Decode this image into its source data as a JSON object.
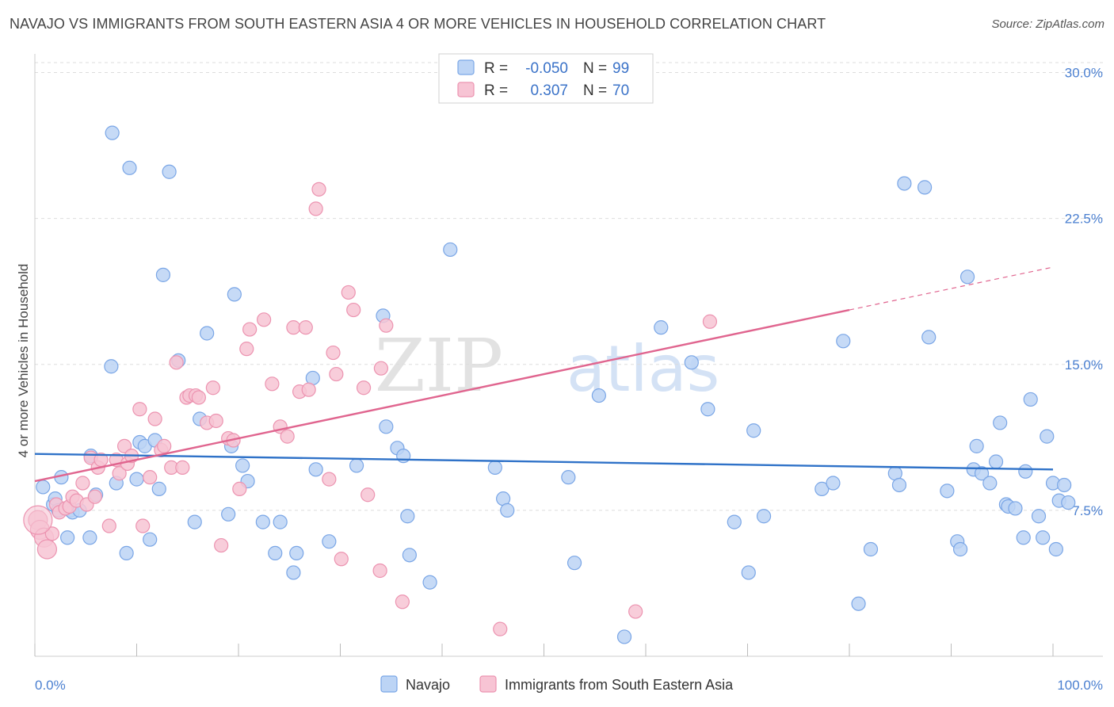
{
  "title": "NAVAJO VS IMMIGRANTS FROM SOUTH EASTERN ASIA 4 OR MORE VEHICLES IN HOUSEHOLD CORRELATION CHART",
  "source": "Source: ZipAtlas.com",
  "watermark": {
    "zip": "ZIP",
    "atlas": "atlas"
  },
  "colors": {
    "navajo_fill": "#bcd4f5",
    "navajo_stroke": "#7aa6e6",
    "navajo_line": "#2f72c8",
    "sea_fill": "#f7c4d4",
    "sea_stroke": "#ec93b0",
    "sea_line": "#e0658f",
    "grid": "#dddddd",
    "axis_text": "#4a7fd0"
  },
  "stats": [
    {
      "r_label": "R =",
      "r_value": "-0.050",
      "n_label": "N =",
      "n_value": "99"
    },
    {
      "r_label": "R =",
      "r_value": "0.307",
      "n_label": "N =",
      "n_value": "70"
    }
  ],
  "chart_data": {
    "type": "scatter",
    "xlabel": "",
    "ylabel": "4 or more Vehicles in Household",
    "xlim": [
      0,
      100
    ],
    "ylim": [
      0,
      31
    ],
    "x_tick_labels": [
      "0.0%",
      "100.0%"
    ],
    "y_ticks": [
      7.5,
      15.0,
      22.5,
      30.0
    ],
    "y_tick_labels": [
      "7.5%",
      "15.0%",
      "22.5%",
      "30.0%"
    ],
    "grid": "horizontal dashed",
    "legend_position": "bottom",
    "series": [
      {
        "name": "Navajo",
        "trend": {
          "x": [
            0,
            100
          ],
          "y": [
            10.4,
            9.6
          ]
        },
        "points": [
          [
            0.8,
            8.7
          ],
          [
            1.8,
            7.8
          ],
          [
            2.0,
            8.1
          ],
          [
            2.3,
            7.5
          ],
          [
            2.6,
            9.2
          ],
          [
            3.2,
            6.1
          ],
          [
            3.5,
            7.5
          ],
          [
            3.7,
            7.4
          ],
          [
            4.4,
            7.5
          ],
          [
            5.4,
            6.1
          ],
          [
            5.5,
            10.3
          ],
          [
            6.0,
            8.3
          ],
          [
            7.5,
            14.9
          ],
          [
            7.6,
            26.9
          ],
          [
            8.0,
            8.9
          ],
          [
            9.0,
            5.3
          ],
          [
            9.3,
            25.1
          ],
          [
            10.0,
            9.1
          ],
          [
            10.3,
            11.0
          ],
          [
            10.8,
            10.8
          ],
          [
            11.3,
            6.0
          ],
          [
            11.8,
            11.1
          ],
          [
            12.2,
            8.6
          ],
          [
            12.6,
            19.6
          ],
          [
            13.2,
            24.9
          ],
          [
            14.1,
            15.2
          ],
          [
            15.7,
            6.9
          ],
          [
            16.2,
            12.2
          ],
          [
            16.9,
            16.6
          ],
          [
            19.0,
            7.3
          ],
          [
            19.3,
            10.8
          ],
          [
            19.6,
            18.6
          ],
          [
            20.4,
            9.8
          ],
          [
            20.9,
            9.0
          ],
          [
            22.4,
            6.9
          ],
          [
            23.6,
            5.3
          ],
          [
            24.1,
            6.9
          ],
          [
            25.4,
            4.3
          ],
          [
            25.7,
            5.3
          ],
          [
            27.3,
            14.3
          ],
          [
            27.6,
            9.6
          ],
          [
            28.9,
            5.9
          ],
          [
            31.6,
            9.8
          ],
          [
            34.2,
            17.5
          ],
          [
            34.5,
            11.8
          ],
          [
            35.6,
            10.7
          ],
          [
            36.2,
            10.3
          ],
          [
            36.6,
            7.2
          ],
          [
            36.8,
            5.2
          ],
          [
            38.8,
            3.8
          ],
          [
            40.8,
            20.9
          ],
          [
            45.2,
            9.7
          ],
          [
            46.0,
            8.1
          ],
          [
            46.4,
            7.5
          ],
          [
            52.4,
            9.2
          ],
          [
            53.0,
            4.8
          ],
          [
            55.4,
            13.4
          ],
          [
            57.9,
            1.0
          ],
          [
            61.5,
            16.9
          ],
          [
            64.5,
            15.1
          ],
          [
            66.1,
            12.7
          ],
          [
            68.7,
            6.9
          ],
          [
            70.1,
            4.3
          ],
          [
            70.6,
            11.6
          ],
          [
            71.6,
            7.2
          ],
          [
            77.3,
            8.6
          ],
          [
            78.4,
            8.9
          ],
          [
            79.4,
            16.2
          ],
          [
            80.9,
            2.7
          ],
          [
            82.1,
            5.5
          ],
          [
            84.5,
            9.4
          ],
          [
            84.9,
            8.8
          ],
          [
            85.4,
            24.3
          ],
          [
            87.4,
            24.1
          ],
          [
            87.8,
            16.4
          ],
          [
            89.6,
            8.5
          ],
          [
            90.6,
            5.9
          ],
          [
            90.9,
            5.5
          ],
          [
            91.6,
            19.5
          ],
          [
            92.2,
            9.6
          ],
          [
            92.5,
            10.8
          ],
          [
            93.0,
            9.4
          ],
          [
            93.8,
            8.9
          ],
          [
            94.4,
            10.0
          ],
          [
            94.8,
            12.0
          ],
          [
            95.4,
            7.8
          ],
          [
            95.6,
            7.7
          ],
          [
            96.3,
            7.6
          ],
          [
            97.1,
            6.1
          ],
          [
            97.3,
            9.5
          ],
          [
            97.8,
            13.2
          ],
          [
            98.6,
            7.2
          ],
          [
            99.0,
            6.1
          ],
          [
            99.4,
            11.3
          ],
          [
            100.0,
            8.9
          ],
          [
            100.3,
            5.5
          ],
          [
            100.6,
            8.0
          ],
          [
            101.1,
            8.8
          ],
          [
            101.5,
            7.9
          ]
        ]
      },
      {
        "name": "Immigrants from South Eastern Asia",
        "trend": {
          "x": [
            0,
            80
          ],
          "y": [
            9.0,
            17.8
          ]
        },
        "trend_dashed": {
          "x": [
            80,
            100
          ],
          "y": [
            17.8,
            20.0
          ]
        },
        "points": [
          [
            0.3,
            7.0
          ],
          [
            0.5,
            6.5
          ],
          [
            0.9,
            6.1
          ],
          [
            1.2,
            5.5
          ],
          [
            1.7,
            6.3
          ],
          [
            2.1,
            7.8
          ],
          [
            2.4,
            7.4
          ],
          [
            3.0,
            7.6
          ],
          [
            3.4,
            7.7
          ],
          [
            3.7,
            8.2
          ],
          [
            4.1,
            8.0
          ],
          [
            4.7,
            8.9
          ],
          [
            5.1,
            7.8
          ],
          [
            5.5,
            10.2
          ],
          [
            5.9,
            8.2
          ],
          [
            6.2,
            9.7
          ],
          [
            6.5,
            10.1
          ],
          [
            7.3,
            6.7
          ],
          [
            8.0,
            10.1
          ],
          [
            8.3,
            9.4
          ],
          [
            8.8,
            10.8
          ],
          [
            9.1,
            9.9
          ],
          [
            9.5,
            10.3
          ],
          [
            10.3,
            12.7
          ],
          [
            10.6,
            6.7
          ],
          [
            11.3,
            9.2
          ],
          [
            11.8,
            12.2
          ],
          [
            12.4,
            10.6
          ],
          [
            12.7,
            10.8
          ],
          [
            13.4,
            9.7
          ],
          [
            13.9,
            15.1
          ],
          [
            14.5,
            9.7
          ],
          [
            14.9,
            13.3
          ],
          [
            15.2,
            13.4
          ],
          [
            15.8,
            13.4
          ],
          [
            16.1,
            13.3
          ],
          [
            16.9,
            12.0
          ],
          [
            17.5,
            13.8
          ],
          [
            17.8,
            12.1
          ],
          [
            18.3,
            5.7
          ],
          [
            19.0,
            11.2
          ],
          [
            19.5,
            11.1
          ],
          [
            20.1,
            8.6
          ],
          [
            20.8,
            15.8
          ],
          [
            21.1,
            16.8
          ],
          [
            22.5,
            17.3
          ],
          [
            23.3,
            14.0
          ],
          [
            24.1,
            11.8
          ],
          [
            24.8,
            11.3
          ],
          [
            25.4,
            16.9
          ],
          [
            26.0,
            13.6
          ],
          [
            26.6,
            16.9
          ],
          [
            26.9,
            13.7
          ],
          [
            27.6,
            23.0
          ],
          [
            27.9,
            24.0
          ],
          [
            28.9,
            9.1
          ],
          [
            29.3,
            15.6
          ],
          [
            29.6,
            14.5
          ],
          [
            30.1,
            5.0
          ],
          [
            30.8,
            18.7
          ],
          [
            31.3,
            17.8
          ],
          [
            32.3,
            13.8
          ],
          [
            32.7,
            8.3
          ],
          [
            33.9,
            4.4
          ],
          [
            34.0,
            14.8
          ],
          [
            34.5,
            17.0
          ],
          [
            36.1,
            2.8
          ],
          [
            45.7,
            1.4
          ],
          [
            59.0,
            2.3
          ],
          [
            66.3,
            17.2
          ]
        ]
      }
    ]
  }
}
